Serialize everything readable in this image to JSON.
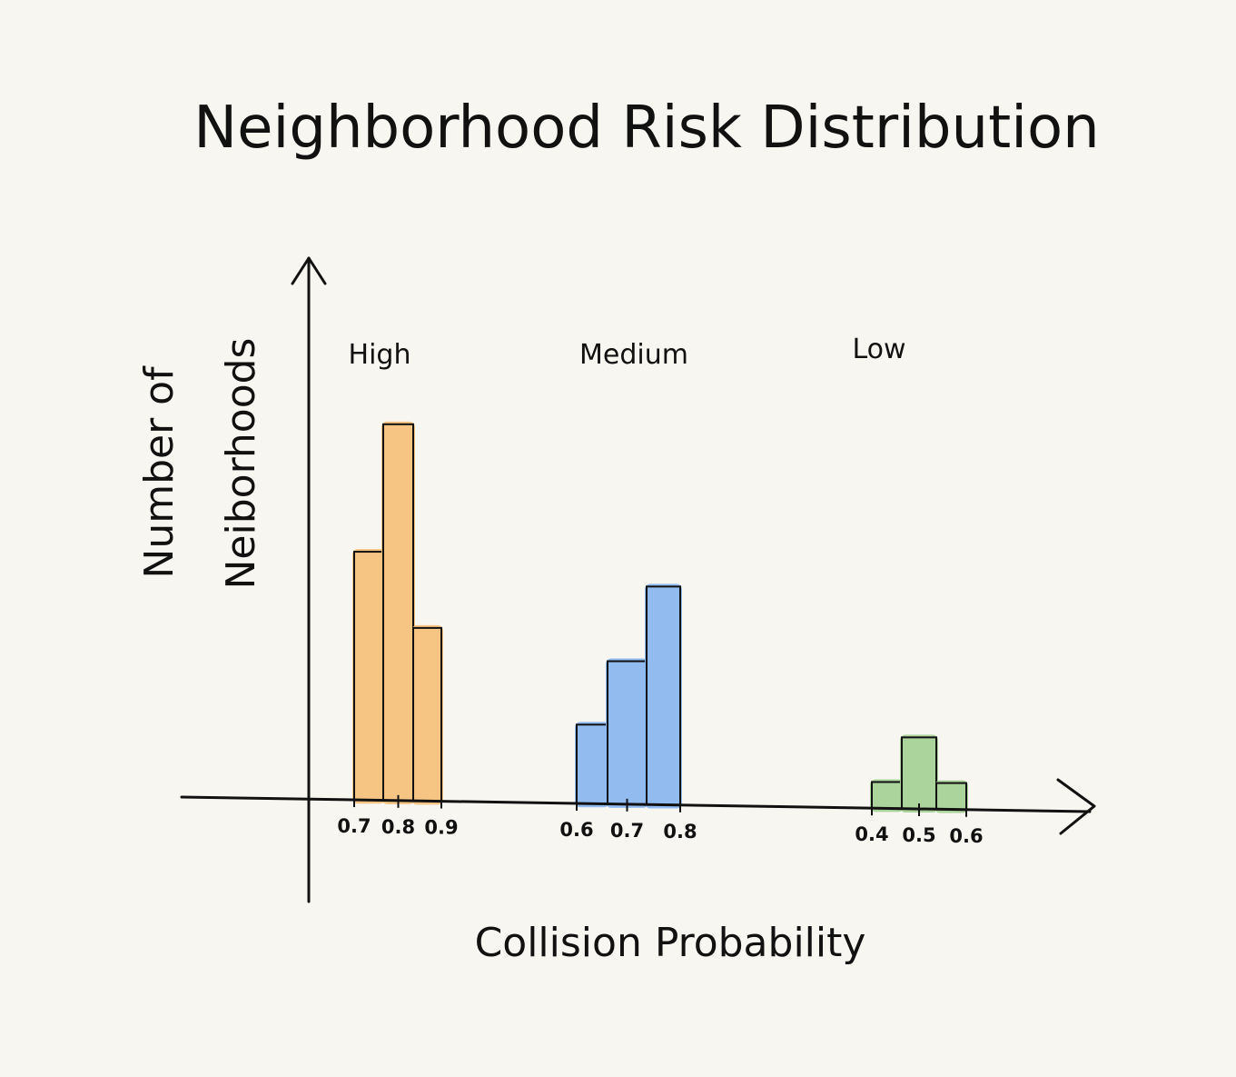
{
  "chart_data": {
    "type": "bar",
    "title": "Neighborhood Risk Distribution",
    "xlabel": "Collision Probability",
    "ylabel_lines": [
      "Number of",
      "Neiborhoods"
    ],
    "groups": [
      {
        "label": "High",
        "color": "#f6c27d",
        "ticks": [
          "0.7",
          "0.8",
          "0.9"
        ],
        "values": [
          66,
          100,
          46
        ]
      },
      {
        "label": "Medium",
        "color": "#8cb8ee",
        "ticks": [
          "0.6",
          "0.7",
          "0.8"
        ],
        "values": [
          21,
          38,
          58
        ]
      },
      {
        "label": "Low",
        "color": "#a6d197",
        "ticks": [
          "0.4",
          "0.5",
          "0.6"
        ],
        "values": [
          7,
          19,
          7
        ]
      }
    ]
  }
}
